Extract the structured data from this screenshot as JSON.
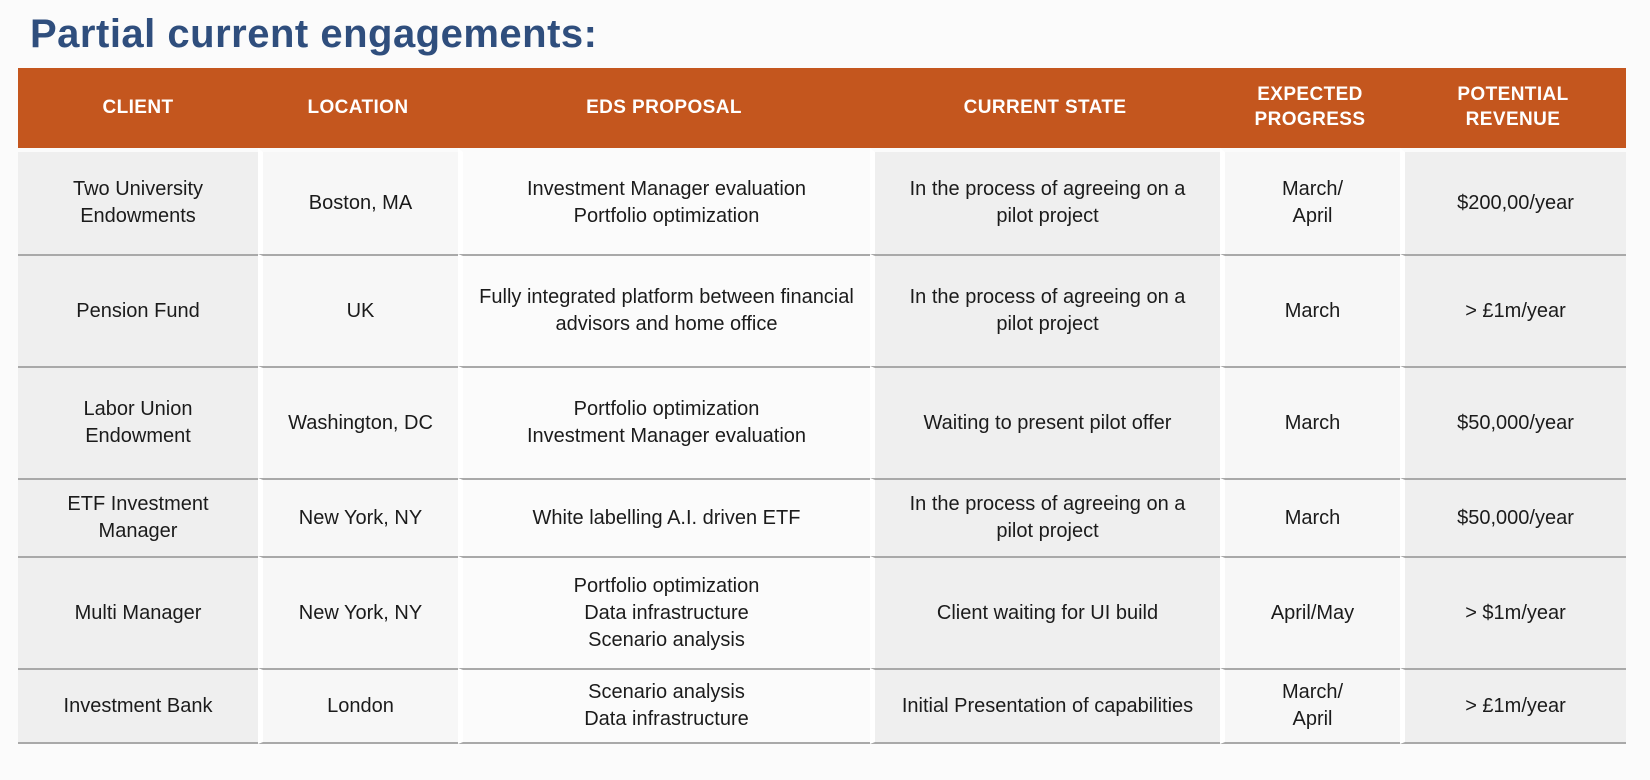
{
  "page": {
    "title": "Partial current engagements:"
  },
  "colors": {
    "title_text": "#2f4e7d",
    "header_bg": "#c4561e",
    "header_text": "#ffffff",
    "column_shade_dark": "#efefef",
    "column_shade_mid": "#f7f7f7",
    "column_shade_light": "#fbfbfb",
    "row_divider": "#a9a9a9",
    "body_text": "#1b1b1b"
  },
  "table": {
    "columns": [
      {
        "key": "client",
        "label": "CLIENT"
      },
      {
        "key": "location",
        "label": "LOCATION"
      },
      {
        "key": "proposal",
        "label": "EDS PROPOSAL"
      },
      {
        "key": "state",
        "label": "CURRENT STATE"
      },
      {
        "key": "progress",
        "label": "EXPECTED\nPROGRESS"
      },
      {
        "key": "revenue",
        "label": "POTENTIAL\nREVENUE"
      }
    ],
    "rows": [
      {
        "client": "Two University Endowments",
        "location": "Boston, MA",
        "proposal": [
          "Investment Manager evaluation",
          "Portfolio optimization"
        ],
        "state": "In the process of agreeing on a pilot project",
        "progress": "March/\nApril",
        "revenue": "$200,00/year"
      },
      {
        "client": "Pension Fund",
        "location": "UK",
        "proposal": [
          "Fully integrated platform between financial advisors and home office"
        ],
        "state": "In the process of agreeing on a pilot project",
        "progress": "March",
        "revenue": "> £1m/year"
      },
      {
        "client": "Labor Union Endowment",
        "location": "Washington, DC",
        "proposal": [
          "Portfolio optimization",
          "Investment Manager evaluation"
        ],
        "state": "Waiting to present pilot offer",
        "progress": "March",
        "revenue": "$50,000/year"
      },
      {
        "client": "ETF Investment Manager",
        "location": "New York, NY",
        "proposal": [
          "White labelling A.I. driven ETF"
        ],
        "state": "In the process of agreeing on a pilot project",
        "progress": "March",
        "revenue": "$50,000/year"
      },
      {
        "client": "Multi Manager",
        "location": "New York, NY",
        "proposal": [
          "Portfolio optimization",
          "Data infrastructure",
          "Scenario analysis"
        ],
        "state": "Client waiting for UI build",
        "progress": "April/May",
        "revenue": "> $1m/year"
      },
      {
        "client": "Investment Bank",
        "location": "London",
        "proposal": [
          "Scenario analysis",
          "Data infrastructure"
        ],
        "state": "Initial Presentation of capabilities",
        "progress": "March/\nApril",
        "revenue": "> £1m/year"
      }
    ]
  }
}
